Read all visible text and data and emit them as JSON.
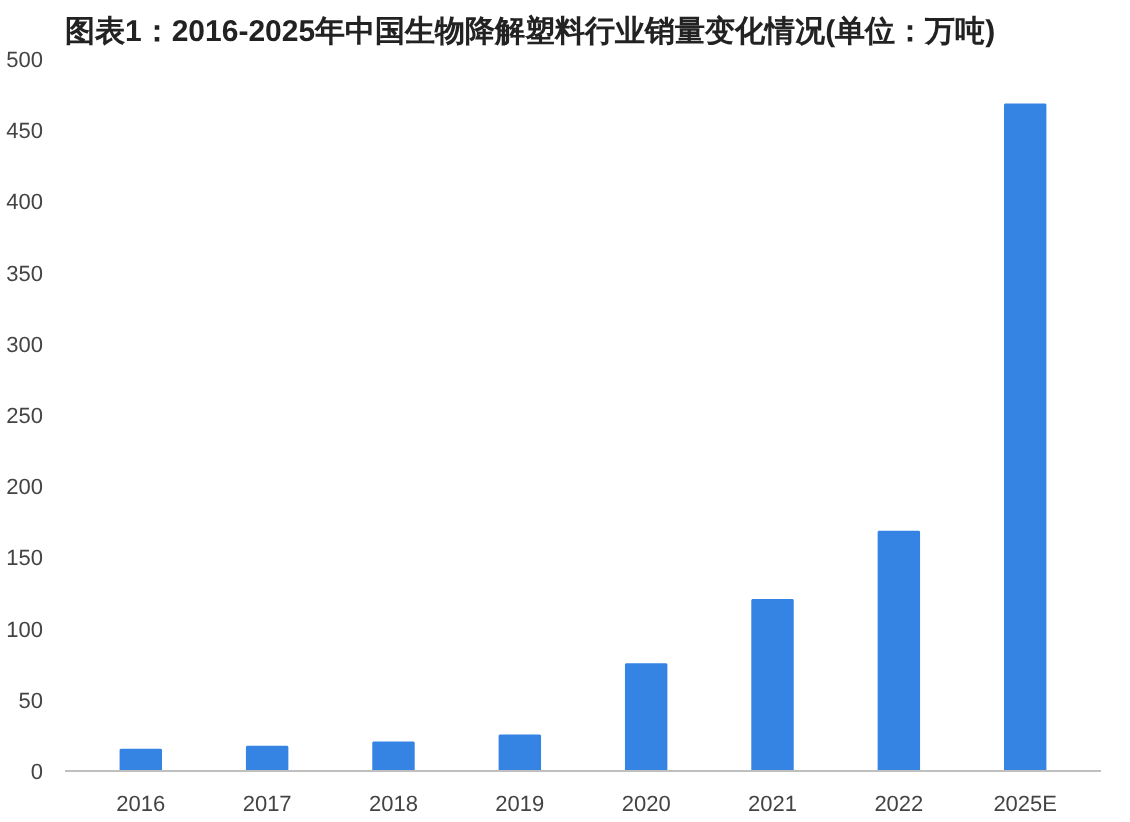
{
  "chart_data": {
    "type": "bar",
    "title": "图表1：2016-2025年中国生物降解塑料行业销量变化情况(单位：万吨)",
    "categories": [
      "2016",
      "2017",
      "2018",
      "2019",
      "2020",
      "2021",
      "2022",
      "2025E"
    ],
    "values": [
      15,
      17,
      20,
      25,
      75,
      120,
      168,
      468
    ],
    "color": "#3584e4",
    "ylim": [
      0,
      500
    ],
    "yticks": [
      0,
      50,
      100,
      150,
      200,
      250,
      300,
      350,
      400,
      450,
      500
    ],
    "grid": false
  }
}
